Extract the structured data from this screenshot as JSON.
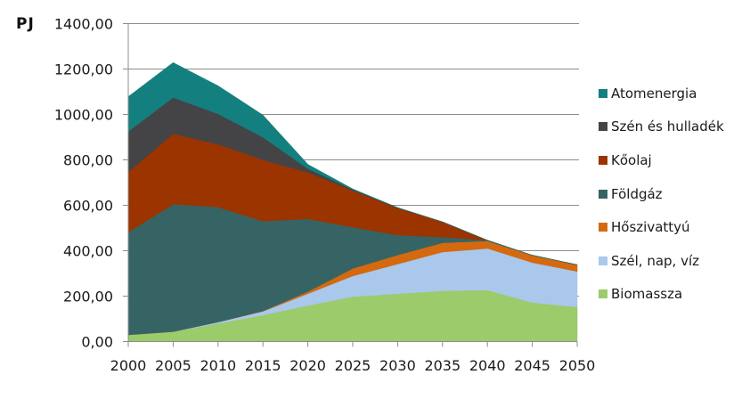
{
  "chart_data": {
    "type": "area",
    "stacked": true,
    "title": "",
    "xlabel": "",
    "ylabel": "PJ",
    "ylim": [
      0,
      1400
    ],
    "yticks": [
      "0,00",
      "200,00",
      "400,00",
      "600,00",
      "800,00",
      "1000,00",
      "1200,00",
      "1400,00"
    ],
    "ytick_values": [
      0,
      200,
      400,
      600,
      800,
      1000,
      1200,
      1400
    ],
    "x": [
      "2000",
      "2005",
      "2010",
      "2015",
      "2020",
      "2025",
      "2030",
      "2035",
      "2040",
      "2045",
      "2050"
    ],
    "grid": true,
    "legend_position": "right",
    "series": [
      {
        "name": "Biomassza",
        "color": "#9BCB6A",
        "values": [
          30,
          44,
          80,
          117,
          159,
          198,
          211,
          224,
          227,
          172,
          152
        ]
      },
      {
        "name": "Szél, nap, víz",
        "color": "#A9C8EC",
        "values": [
          0,
          0,
          6,
          16,
          52,
          91,
          130,
          170,
          183,
          176,
          157
        ]
      },
      {
        "name": "Hőszivattyú",
        "color": "#D4690F",
        "values": [
          0,
          0,
          0,
          2,
          9,
          33,
          40,
          41,
          33,
          32,
          29
        ]
      },
      {
        "name": "Földgáz",
        "color": "#366464",
        "values": [
          452,
          561,
          506,
          395,
          320,
          182,
          88,
          25,
          3,
          0,
          0
        ]
      },
      {
        "name": "Kőolaj",
        "color": "#9C3400",
        "values": [
          264,
          310,
          277,
          270,
          205,
          161,
          119,
          67,
          0,
          0,
          0
        ]
      },
      {
        "name": "Szén és hulladék",
        "color": "#444446",
        "values": [
          180,
          160,
          134,
          100,
          17,
          5,
          2,
          0,
          0,
          0,
          0
        ]
      },
      {
        "name": "Atomenergia",
        "color": "#13807F",
        "values": [
          152,
          153,
          123,
          97,
          18,
          2,
          0,
          0,
          0,
          0,
          0
        ]
      }
    ],
    "legend_order": [
      "Atomenergia",
      "Szén és hulladék",
      "Kőolaj",
      "Földgáz",
      "Hőszivattyú",
      "Szél, nap, víz",
      "Biomassza"
    ]
  },
  "unit_label": "PJ"
}
